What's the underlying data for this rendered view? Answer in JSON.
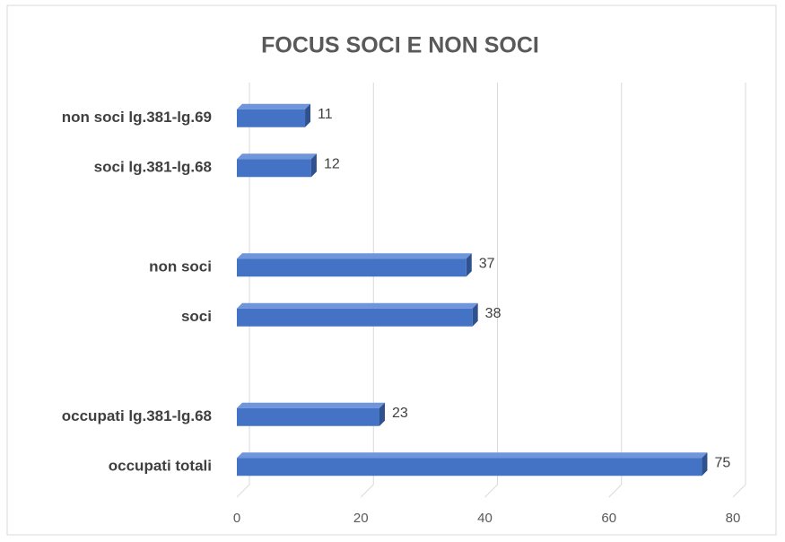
{
  "chart_data": {
    "type": "bar",
    "orientation": "horizontal",
    "title": "FOCUS SOCI E NON SOCI",
    "categories": [
      "non soci lg.381-lg.69",
      "soci lg.381-lg.68",
      null,
      "non soci",
      "soci",
      null,
      "occupati lg.381-lg.68",
      "occupati totali"
    ],
    "values": [
      11,
      12,
      null,
      37,
      38,
      null,
      23,
      75
    ],
    "color": "#4472c4",
    "xlim": [
      0,
      80
    ],
    "xticks": [
      0,
      20,
      40,
      60,
      80
    ],
    "grid": true
  }
}
